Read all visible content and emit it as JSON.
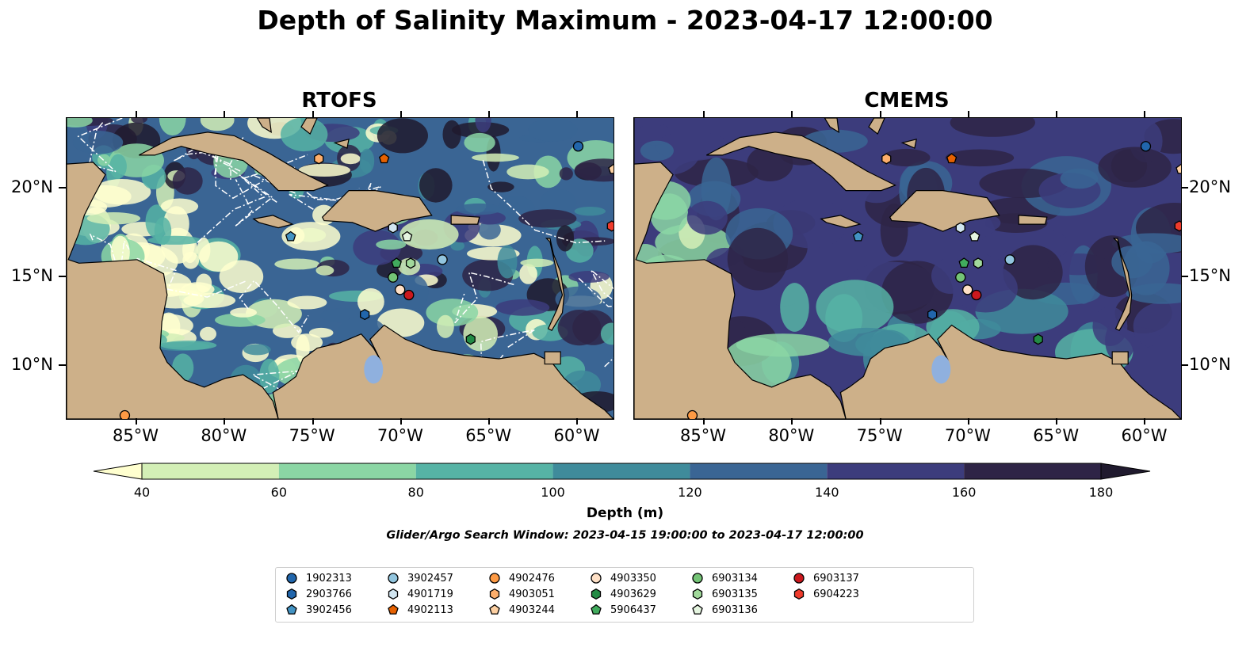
{
  "title": "Depth of Salinity Maximum - 2023-04-17 12:00:00",
  "panels": [
    {
      "title": "RTOFS"
    },
    {
      "title": "CMEMS"
    }
  ],
  "axes": {
    "lon_ticks": [
      "85°W",
      "80°W",
      "75°W",
      "70°W",
      "65°W",
      "60°W"
    ],
    "lat_ticks": [
      "20°N",
      "15°N",
      "10°N"
    ],
    "lon_range": [
      -89,
      -58
    ],
    "lat_range": [
      7,
      24
    ]
  },
  "colorbar": {
    "label": "Depth (m)",
    "ticks": [
      "40",
      "60",
      "80",
      "100",
      "120",
      "140",
      "160",
      "180"
    ],
    "colors": [
      "#ffffcf",
      "#d3efb6",
      "#8bd6a4",
      "#56b3a5",
      "#3f8b9b",
      "#3a6594",
      "#3c3c7c",
      "#2e2446",
      "#201a2e"
    ],
    "extend": "both"
  },
  "search_window": "Glider/Argo Search Window: 2023-04-15 19:00:00 to 2023-04-17 12:00:00",
  "land_color": "#cdb089",
  "legend": {
    "entries": [
      {
        "id": "1902313",
        "marker": "circle",
        "color": "#2166ac"
      },
      {
        "id": "2903766",
        "marker": "hexagon",
        "color": "#2166ac"
      },
      {
        "id": "3902456",
        "marker": "pentagon",
        "color": "#4393c3"
      },
      {
        "id": "3902457",
        "marker": "circle",
        "color": "#92c5de"
      },
      {
        "id": "4901719",
        "marker": "hexagon",
        "color": "#d1e5f0"
      },
      {
        "id": "4902113",
        "marker": "pentagon",
        "color": "#e66101"
      },
      {
        "id": "4902476",
        "marker": "circle",
        "color": "#fd9a44"
      },
      {
        "id": "4903051",
        "marker": "hexagon",
        "color": "#fdae6b"
      },
      {
        "id": "4903244",
        "marker": "pentagon",
        "color": "#fdd0a2"
      },
      {
        "id": "4903350",
        "marker": "circle",
        "color": "#fee0c6"
      },
      {
        "id": "4903629",
        "marker": "hexagon",
        "color": "#238b45"
      },
      {
        "id": "5906437",
        "marker": "pentagon",
        "color": "#41ab5d"
      },
      {
        "id": "6903134",
        "marker": "circle",
        "color": "#74c476"
      },
      {
        "id": "6903135",
        "marker": "hexagon",
        "color": "#a1d99b"
      },
      {
        "id": "6903136",
        "marker": "pentagon",
        "color": "#e5f5e0"
      },
      {
        "id": "6903137",
        "marker": "circle",
        "color": "#cb181d"
      },
      {
        "id": "6904223",
        "marker": "hexagon",
        "color": "#ef3b2c"
      }
    ]
  },
  "floats": [
    {
      "id": "1902313",
      "lon": -60.0,
      "lat": 22.4
    },
    {
      "id": "2903766",
      "lon": -72.1,
      "lat": 12.9
    },
    {
      "id": "3902456",
      "lon": -76.3,
      "lat": 17.3
    },
    {
      "id": "3902457",
      "lon": -67.7,
      "lat": 16.0
    },
    {
      "id": "4901719",
      "lon": -70.5,
      "lat": 17.8
    },
    {
      "id": "4902113",
      "lon": -71.0,
      "lat": 21.7
    },
    {
      "id": "4902476",
      "lon": -85.7,
      "lat": 7.2
    },
    {
      "id": "4903051",
      "lon": -74.7,
      "lat": 21.7
    },
    {
      "id": "4903244",
      "lon": -58.0,
      "lat": 21.1
    },
    {
      "id": "4903350",
      "lon": -70.1,
      "lat": 14.3
    },
    {
      "id": "4903629",
      "lon": -66.1,
      "lat": 11.5
    },
    {
      "id": "5906437",
      "lon": -70.3,
      "lat": 15.8
    },
    {
      "id": "6903134",
      "lon": -70.5,
      "lat": 15.0
    },
    {
      "id": "6903135",
      "lon": -69.5,
      "lat": 15.8
    },
    {
      "id": "6903136",
      "lon": -69.7,
      "lat": 17.3
    },
    {
      "id": "6903137",
      "lon": -69.6,
      "lat": 14.0
    },
    {
      "id": "6904223",
      "lon": -58.1,
      "lat": 17.9
    }
  ]
}
